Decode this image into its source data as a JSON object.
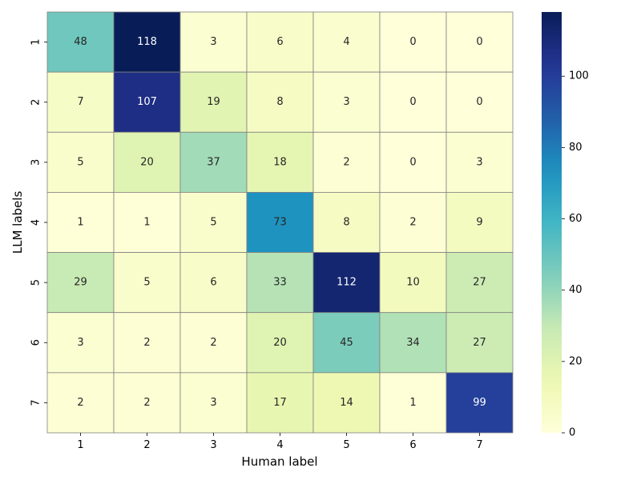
{
  "chart_data": {
    "type": "heatmap",
    "title": "",
    "xlabel": "Human label",
    "ylabel": "LLM labels",
    "x_categories": [
      "1",
      "2",
      "3",
      "4",
      "5",
      "6",
      "7"
    ],
    "y_categories": [
      "1",
      "2",
      "3",
      "4",
      "5",
      "6",
      "7"
    ],
    "values": [
      [
        48,
        118,
        3,
        6,
        4,
        0,
        0
      ],
      [
        7,
        107,
        19,
        8,
        3,
        0,
        0
      ],
      [
        5,
        20,
        37,
        18,
        2,
        0,
        3
      ],
      [
        1,
        1,
        5,
        73,
        8,
        2,
        9
      ],
      [
        29,
        5,
        6,
        33,
        112,
        10,
        27
      ],
      [
        3,
        2,
        2,
        20,
        45,
        34,
        27
      ],
      [
        2,
        2,
        3,
        17,
        14,
        1,
        99
      ]
    ],
    "colormap": "YlGnBu",
    "colorbar": {
      "min": 0,
      "max": 118,
      "ticks": [
        0,
        20,
        40,
        60,
        80,
        100
      ]
    },
    "grid_color": "#808080",
    "annotations": true
  }
}
